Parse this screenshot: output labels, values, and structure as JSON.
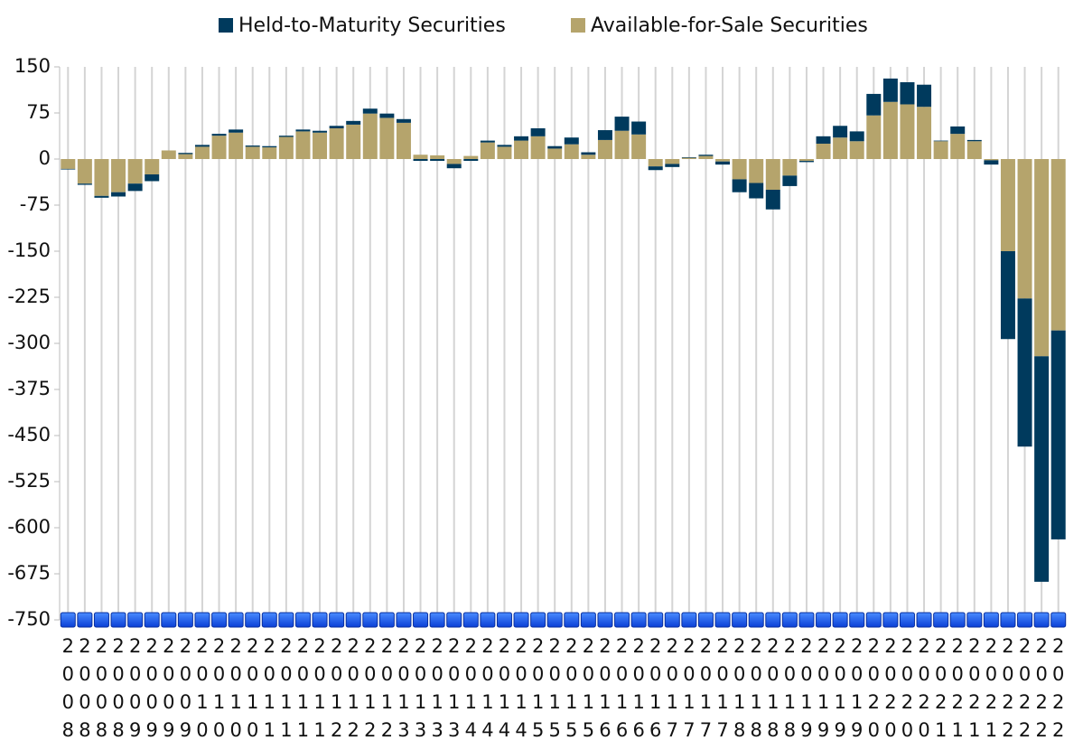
{
  "chart_data": {
    "type": "stacked_bar",
    "categories": [
      "2008",
      "2008",
      "2008",
      "2008",
      "2009",
      "2009",
      "2009",
      "2009",
      "2010",
      "2010",
      "2010",
      "2010",
      "2011",
      "2011",
      "2011",
      "2011",
      "2012",
      "2012",
      "2012",
      "2012",
      "2013",
      "2013",
      "2013",
      "2013",
      "2014",
      "2014",
      "2014",
      "2014",
      "2015",
      "2015",
      "2015",
      "2015",
      "2016",
      "2016",
      "2016",
      "2016",
      "2017",
      "2017",
      "2017",
      "2017",
      "2018",
      "2018",
      "2018",
      "2018",
      "2019",
      "2019",
      "2019",
      "2019",
      "2020",
      "2020",
      "2020",
      "2020",
      "2021",
      "2021",
      "2021",
      "2021",
      "2022",
      "2022",
      "2022",
      "2022"
    ],
    "series": [
      {
        "name": "Held-to-Maturity Securities",
        "color": "#003a5d",
        "values": [
          -1,
          -2,
          -3,
          -7,
          -12,
          -11,
          0,
          2,
          3,
          3,
          5,
          2,
          2,
          2,
          3,
          3,
          4,
          6,
          8,
          7,
          6,
          -3,
          -3,
          -7,
          -3,
          3,
          3,
          7,
          13,
          4,
          11,
          4,
          16,
          23,
          21,
          -6,
          -5,
          1,
          2,
          -5,
          -21,
          -25,
          -32,
          -17,
          -2,
          12,
          19,
          16,
          35,
          38,
          36,
          36,
          1,
          12,
          2,
          -7,
          -143,
          -241,
          -367,
          -340
        ]
      },
      {
        "name": "Available-for-Sale Securities",
        "color": "#b5a46c",
        "values": [
          -16,
          -40,
          -60,
          -54,
          -40,
          -25,
          14,
          8,
          20,
          38,
          43,
          20,
          19,
          36,
          45,
          43,
          50,
          56,
          74,
          67,
          59,
          7,
          6,
          -8,
          5,
          27,
          20,
          30,
          37,
          17,
          24,
          7,
          31,
          46,
          40,
          -12,
          -8,
          2,
          5,
          -4,
          -33,
          -39,
          -50,
          -27,
          -3,
          25,
          35,
          29,
          71,
          93,
          89,
          85,
          29,
          41,
          29,
          -2,
          -150,
          -227,
          -321,
          -279
        ]
      }
    ],
    "ylim": [
      -750,
      150
    ],
    "yticks": [
      150,
      75,
      0,
      -75,
      -150,
      -225,
      -300,
      -375,
      -450,
      -525,
      -600,
      -675,
      -750
    ],
    "grid": true,
    "legend": "top"
  }
}
